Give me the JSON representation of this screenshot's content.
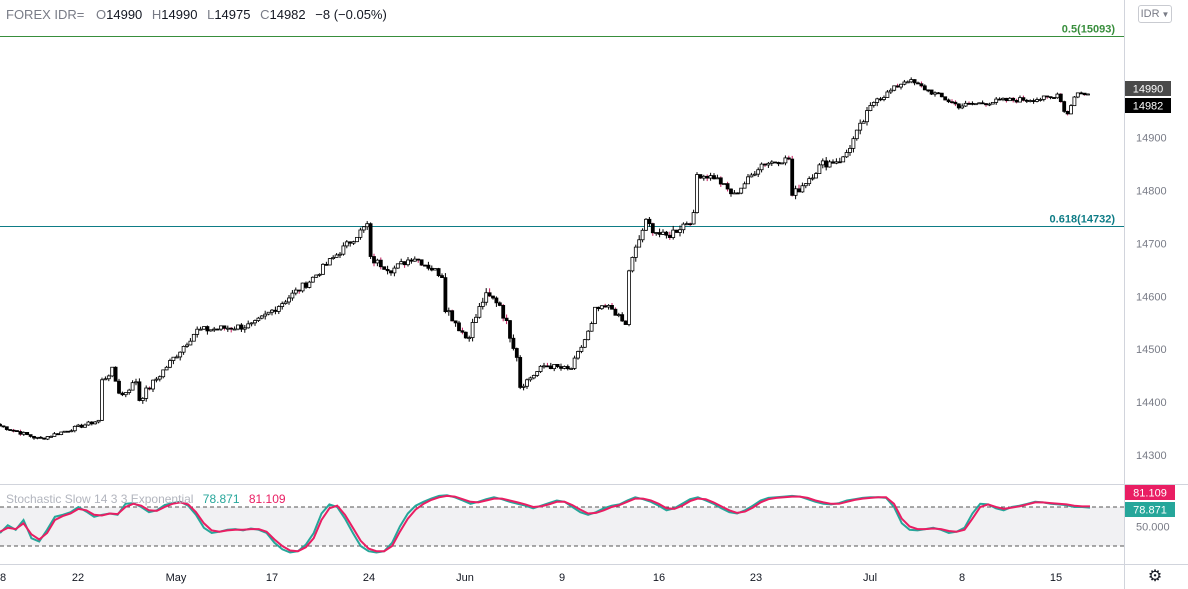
{
  "header": {
    "symbol": "FOREX IDR=",
    "open_label": "O",
    "open": "14990",
    "high_label": "H",
    "high": "14990",
    "low_label": "L",
    "low": "14975",
    "close_label": "C",
    "close": "14982",
    "change": "−8 (−0.05%)"
  },
  "currency_button": {
    "label": "IDR",
    "icon": "chevron-down-icon"
  },
  "settings_icon": "gear-icon",
  "colors": {
    "candle_body": "#ffffff",
    "candle_border": "#000000",
    "candle_wick_down": "#c2185b",
    "fib_05": "#388e3c",
    "fib_0618": "#0e7c86",
    "stoch_k": "#26a69a",
    "stoch_d": "#e91e63",
    "price_tag_prev": "#4a4a4a",
    "price_tag_last": "#000000"
  },
  "chart_data": [
    {
      "type": "candlestick",
      "title": "FOREX IDR=",
      "y_ticks": [
        14300,
        14400,
        14500,
        14600,
        14700,
        14800,
        14900
      ],
      "ylim": [
        14245,
        15113
      ],
      "x_ticks": [
        "8",
        "22",
        "May",
        "17",
        "24",
        "Jun",
        "9",
        "16",
        "23",
        "Jul",
        "8",
        "15"
      ],
      "grid": false,
      "price_tags": [
        {
          "name": "open",
          "value": "14990"
        },
        {
          "name": "last",
          "value": "14982"
        }
      ],
      "levels": [
        {
          "label": "0.5(15093)",
          "value": 15093
        },
        {
          "label": "0.618(14732)",
          "value": 14732
        }
      ],
      "segments": [
        {
          "start": 14355,
          "end": 14350,
          "shape": [
            [
              0,
              0
            ],
            [
              0.4,
              -25
            ],
            [
              1,
              10
            ]
          ],
          "bars": 30,
          "vol": 7
        },
        {
          "start": 14440,
          "end": 14400,
          "shape": [
            [
              0,
              0
            ],
            [
              0.3,
              20
            ],
            [
              0.55,
              -30
            ],
            [
              1,
              0
            ]
          ],
          "bars": 11,
          "vol": 12
        },
        {
          "start": 14405,
          "end": 14735,
          "shape": [
            [
              0,
              0
            ],
            [
              0.25,
              130
            ],
            [
              0.5,
              140
            ],
            [
              0.75,
              225
            ],
            [
              1,
              330
            ]
          ],
          "bars": 68,
          "vol": 14
        },
        {
          "start": 14670,
          "end": 14640,
          "shape": [
            [
              0,
              0
            ],
            [
              0.3,
              -20
            ],
            [
              0.6,
              5
            ],
            [
              1,
              -30
            ]
          ],
          "bars": 22,
          "vol": 14
        },
        {
          "start": 14580,
          "end": 14490,
          "shape": [
            [
              0,
              0
            ],
            [
              0.3,
              -60
            ],
            [
              0.55,
              20
            ],
            [
              0.75,
              10
            ],
            [
              1,
              -90
            ]
          ],
          "bars": 22,
          "vol": 18
        },
        {
          "start": 14430,
          "end": 14545,
          "shape": [
            [
              0,
              0
            ],
            [
              0.35,
              40
            ],
            [
              0.7,
              30
            ],
            [
              1,
              115
            ]
          ],
          "bars": 22,
          "vol": 12
        },
        {
          "start": 14575,
          "end": 14545,
          "shape": [
            [
              0,
              0
            ],
            [
              0.5,
              5
            ],
            [
              1,
              -30
            ]
          ],
          "bars": 10,
          "vol": 10
        },
        {
          "start": 14650,
          "end": 14750,
          "shape": [
            [
              0,
              0
            ],
            [
              0.25,
              90
            ],
            [
              0.55,
              60
            ],
            [
              1,
              100
            ]
          ],
          "bars": 20,
          "vol": 18
        },
        {
          "start": 14830,
          "end": 14860,
          "shape": [
            [
              0,
              0
            ],
            [
              0.2,
              -5
            ],
            [
              0.4,
              -40
            ],
            [
              0.7,
              20
            ],
            [
              1,
              30
            ]
          ],
          "bars": 28,
          "vol": 12
        },
        {
          "start": 14790,
          "end": 14980,
          "shape": [
            [
              0,
              0
            ],
            [
              0.35,
              60
            ],
            [
              0.6,
              70
            ],
            [
              1,
              190
            ]
          ],
          "bars": 26,
          "vol": 16
        },
        {
          "start": 14975,
          "end": 14975,
          "shape": [
            [
              0,
              0
            ],
            [
              0.15,
              35
            ],
            [
              0.45,
              -15
            ],
            [
              0.7,
              -5
            ],
            [
              1,
              0
            ]
          ],
          "bars": 52,
          "vol": 10
        },
        {
          "start": 14985,
          "end": 14982,
          "shape": [
            [
              0,
              0
            ],
            [
              0.3,
              -45
            ],
            [
              0.6,
              0
            ],
            [
              1,
              -3
            ]
          ],
          "bars": 10,
          "vol": 6
        }
      ]
    },
    {
      "type": "line",
      "title": "Stochastic Slow 14 3 3 Exponential",
      "ylim": [
        0,
        100
      ],
      "y_ticks": [
        50
      ],
      "y_tick_labels": [
        "50.000"
      ],
      "levels": [
        80,
        20
      ],
      "series": [
        {
          "name": "K",
          "value_label": "78.871",
          "values": [
            40,
            52,
            45,
            60,
            32,
            27,
            45,
            65,
            68,
            72,
            80,
            73,
            65,
            68,
            70,
            68,
            85,
            86,
            80,
            72,
            75,
            83,
            86,
            88,
            82,
            68,
            48,
            40,
            42,
            45,
            46,
            44,
            47,
            45,
            40,
            25,
            15,
            10,
            12,
            22,
            40,
            70,
            84,
            80,
            62,
            40,
            20,
            12,
            10,
            12,
            25,
            50,
            70,
            82,
            88,
            93,
            97,
            98,
            95,
            90,
            85,
            88,
            92,
            95,
            92,
            88,
            85,
            82,
            78,
            82,
            86,
            90,
            88,
            80,
            72,
            68,
            72,
            78,
            82,
            84,
            90,
            95,
            92,
            88,
            82,
            75,
            78,
            85,
            92,
            95,
            90,
            85,
            78,
            72,
            70,
            75,
            82,
            90,
            94,
            95,
            96,
            97,
            96,
            92,
            88,
            85,
            84,
            86,
            90,
            92,
            94,
            95,
            95,
            94,
            80,
            55,
            45,
            44,
            46,
            48,
            45,
            40,
            42,
            48,
            70,
            85,
            84,
            78,
            75,
            80,
            82,
            85,
            88,
            87,
            85,
            84,
            83,
            80,
            80,
            79
          ]
        },
        {
          "name": "D",
          "value_label": "81.109",
          "values": [
            42,
            48,
            46,
            55,
            38,
            30,
            40,
            60,
            66,
            70,
            77,
            75,
            68,
            67,
            70,
            69,
            80,
            85,
            82,
            75,
            74,
            80,
            85,
            87,
            84,
            72,
            55,
            44,
            42,
            44,
            45,
            45,
            46,
            46,
            42,
            30,
            20,
            13,
            12,
            18,
            32,
            60,
            78,
            82,
            68,
            48,
            28,
            16,
            12,
            12,
            20,
            42,
            62,
            76,
            85,
            91,
            95,
            97,
            96,
            92,
            88,
            87,
            90,
            93,
            93,
            90,
            87,
            84,
            80,
            81,
            84,
            88,
            88,
            83,
            76,
            70,
            71,
            75,
            80,
            83,
            88,
            93,
            93,
            90,
            85,
            78,
            77,
            82,
            89,
            93,
            92,
            87,
            81,
            75,
            71,
            73,
            79,
            87,
            92,
            94,
            95,
            96,
            96,
            94,
            90,
            87,
            85,
            85,
            88,
            91,
            93,
            94,
            95,
            95,
            85,
            62,
            50,
            46,
            46,
            47,
            46,
            43,
            42,
            45,
            62,
            80,
            84,
            80,
            77,
            79,
            81,
            84,
            87,
            87,
            86,
            85,
            84,
            82,
            81,
            81
          ]
        }
      ]
    }
  ]
}
